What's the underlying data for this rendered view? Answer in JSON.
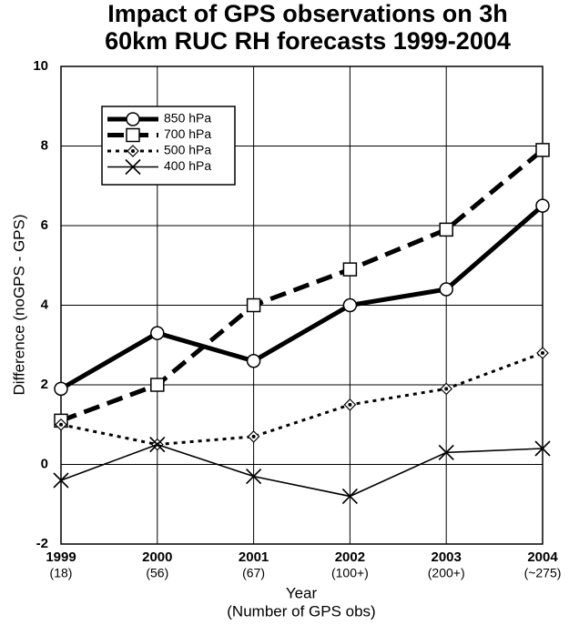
{
  "chart_data": {
    "type": "line",
    "title": [
      "Impact of GPS observations on 3h",
      "60km RUC RH forecasts 1999-2004"
    ],
    "ylabel": "Difference (noGPS - GPS)",
    "xlabel": [
      "Year",
      "(Number of GPS obs)"
    ],
    "categories": [
      "1999",
      "2000",
      "2001",
      "2002",
      "2003",
      "2004"
    ],
    "category_sublabels": [
      "(18)",
      "(56)",
      "(67)",
      "(100+)",
      "(200+)",
      "(~275)"
    ],
    "series": [
      {
        "name": "850 hPa",
        "color": "#000000",
        "width": 5,
        "dash": "none",
        "marker": "circle",
        "values": [
          1.9,
          3.3,
          2.6,
          4.0,
          4.4,
          6.5
        ]
      },
      {
        "name": "700 hPa",
        "color": "#000000",
        "width": 5,
        "dash": "18 9",
        "marker": "square",
        "values": [
          1.1,
          2.0,
          4.0,
          4.9,
          5.9,
          7.9
        ]
      },
      {
        "name": "500 hPa",
        "color": "#000000",
        "width": 3,
        "dash": "4 5",
        "marker": "diamond",
        "values": [
          1.0,
          0.5,
          0.7,
          1.5,
          1.9,
          2.8
        ]
      },
      {
        "name": "400 hPa",
        "color": "#000000",
        "width": 1.6,
        "dash": "none",
        "marker": "x",
        "values": [
          -0.4,
          0.5,
          -0.3,
          -0.8,
          0.3,
          0.4
        ]
      }
    ],
    "ylim": [
      -2,
      10
    ],
    "yticks": [
      -2,
      0,
      2,
      4,
      6,
      8,
      10
    ],
    "grid": true,
    "legend": "upper left"
  }
}
